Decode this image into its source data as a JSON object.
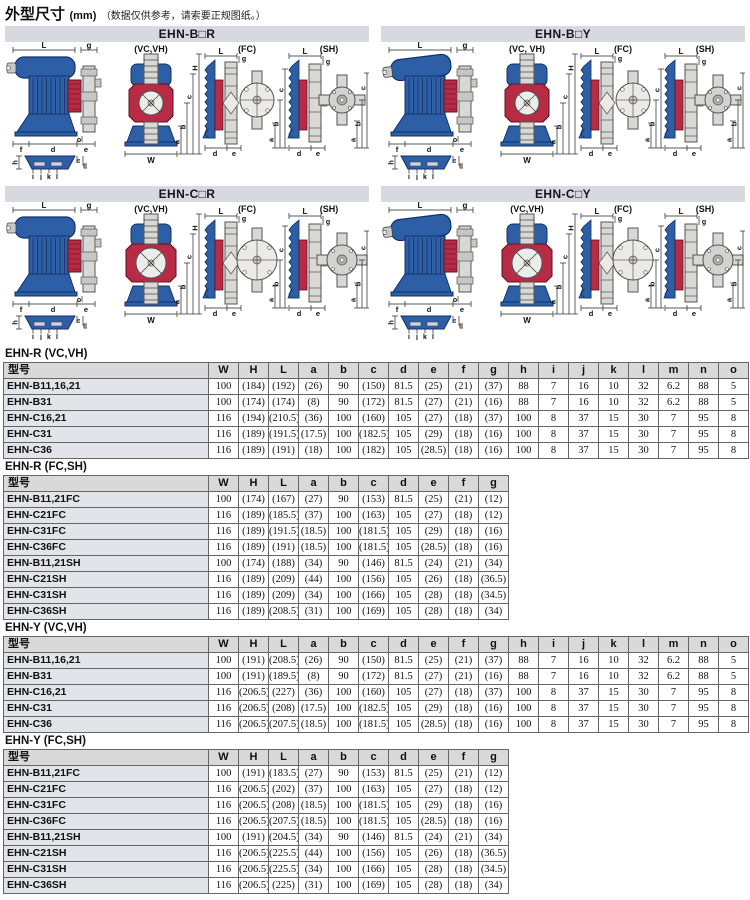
{
  "page": {
    "title": "外型尺寸",
    "title_unit": "(mm)",
    "title_note": "（数据仅供参考，请索要正规图纸。）"
  },
  "colors": {
    "pump_blue": "#2d5fa6",
    "pump_blue_dark": "#13306b",
    "pump_red": "#b72b45",
    "pump_red_dark": "#5e1020",
    "metal_gray": "#d8d8d4",
    "metal_gray_dark": "#555555",
    "panel_header_bg": "#d6d9de",
    "table_header_bg": "#d9d9d9",
    "model_col_bg": "#e3e4ea",
    "table_border": "#666666"
  },
  "panels": [
    {
      "title": "EHN-B□R",
      "views": [
        "(VC,VH)",
        "(FC)",
        "(SH)"
      ],
      "slant": false,
      "big": false
    },
    {
      "title": "EHN-B□Y",
      "views": [
        "(VC, VH)",
        "(FC)",
        "(SH)"
      ],
      "slant": true,
      "big": false
    },
    {
      "title": "EHN-C□R",
      "views": [
        "(VC,VH)",
        "(FC)",
        "(SH)"
      ],
      "slant": false,
      "big": true
    },
    {
      "title": "EHN-C□Y",
      "views": [
        "(VC,VH)",
        "(FC)",
        "(SH)"
      ],
      "slant": true,
      "big": true
    }
  ],
  "diagram_dims": {
    "side_top": [
      "L",
      "g"
    ],
    "side_bottom": [
      "f",
      "d",
      "e"
    ],
    "side_o": "o",
    "front_vertical": [
      "H",
      "c",
      "b",
      "a"
    ],
    "front_bottom": "W",
    "fcsh_vertical": [
      "c",
      "b",
      "a"
    ],
    "fcsh_bottom": [
      "d",
      "e"
    ],
    "fcsh_top": [
      "L",
      "g"
    ],
    "bottom_view": [
      "h",
      "i",
      "j",
      "k",
      "l",
      "m",
      "n"
    ]
  },
  "tables": [
    {
      "label": "EHN-R (VC,VH)",
      "full_width": true,
      "columns": [
        "型号",
        "W",
        "H",
        "L",
        "a",
        "b",
        "c",
        "d",
        "e",
        "f",
        "g",
        "h",
        "i",
        "j",
        "k",
        "l",
        "m",
        "n",
        "o"
      ],
      "rows": [
        [
          "EHN-B11,16,21",
          "100",
          "(184)",
          "(192)",
          "(26)",
          "90",
          "(150)",
          "81.5",
          "(25)",
          "(21)",
          "(37)",
          "88",
          "7",
          "16",
          "10",
          "32",
          "6.2",
          "88",
          "5"
        ],
        [
          "EHN-B31",
          "100",
          "(174)",
          "(174)",
          "(8)",
          "90",
          "(172)",
          "81.5",
          "(27)",
          "(21)",
          "(16)",
          "88",
          "7",
          "16",
          "10",
          "32",
          "6.2",
          "88",
          "5"
        ],
        [
          "EHN-C16,21",
          "116",
          "(194)",
          "(210.5)",
          "(36)",
          "100",
          "(160)",
          "105",
          "(27)",
          "(18)",
          "(37)",
          "100",
          "8",
          "37",
          "15",
          "30",
          "7",
          "95",
          "8"
        ],
        [
          "EHN-C31",
          "116",
          "(189)",
          "(191.5)",
          "(17.5)",
          "100",
          "(182.5)",
          "105",
          "(29)",
          "(18)",
          "(16)",
          "100",
          "8",
          "37",
          "15",
          "30",
          "7",
          "95",
          "8"
        ],
        [
          "EHN-C36",
          "116",
          "(189)",
          "(191)",
          "(18)",
          "100",
          "(182)",
          "105",
          "(28.5)",
          "(18)",
          "(16)",
          "100",
          "8",
          "37",
          "15",
          "30",
          "7",
          "95",
          "8"
        ]
      ]
    },
    {
      "label": "EHN-R (FC,SH)",
      "full_width": false,
      "columns": [
        "型号",
        "W",
        "H",
        "L",
        "a",
        "b",
        "c",
        "d",
        "e",
        "f",
        "g"
      ],
      "rows": [
        [
          "EHN-B11,21FC",
          "100",
          "(174)",
          "(167)",
          "(27)",
          "90",
          "(153)",
          "81.5",
          "(25)",
          "(21)",
          "(12)"
        ],
        [
          "EHN-C21FC",
          "116",
          "(189)",
          "(185.5)",
          "(37)",
          "100",
          "(163)",
          "105",
          "(27)",
          "(18)",
          "(12)"
        ],
        [
          "EHN-C31FC",
          "116",
          "(189)",
          "(191.5)",
          "(18.5)",
          "100",
          "(181.5)",
          "105",
          "(29)",
          "(18)",
          "(16)"
        ],
        [
          "EHN-C36FC",
          "116",
          "(189)",
          "(191)",
          "(18.5)",
          "100",
          "(181.5)",
          "105",
          "(28.5)",
          "(18)",
          "(16)"
        ],
        [
          "EHN-B11,21SH",
          "100",
          "(174)",
          "(188)",
          "(34)",
          "90",
          "(146)",
          "81.5",
          "(24)",
          "(21)",
          "(34)"
        ],
        [
          "EHN-C21SH",
          "116",
          "(189)",
          "(209)",
          "(44)",
          "100",
          "(156)",
          "105",
          "(26)",
          "(18)",
          "(36.5)"
        ],
        [
          "EHN-C31SH",
          "116",
          "(189)",
          "(209)",
          "(34)",
          "100",
          "(166)",
          "105",
          "(28)",
          "(18)",
          "(34.5)"
        ],
        [
          "EHN-C36SH",
          "116",
          "(189)",
          "(208.5)",
          "(31)",
          "100",
          "(169)",
          "105",
          "(28)",
          "(18)",
          "(34)"
        ]
      ]
    },
    {
      "label": "EHN-Y (VC,VH)",
      "full_width": true,
      "columns": [
        "型号",
        "W",
        "H",
        "L",
        "a",
        "b",
        "c",
        "d",
        "e",
        "f",
        "g",
        "h",
        "i",
        "j",
        "k",
        "l",
        "m",
        "n",
        "o"
      ],
      "rows": [
        [
          "EHN-B11,16,21",
          "100",
          "(191)",
          "(208.5)",
          "(26)",
          "90",
          "(150)",
          "81.5",
          "(25)",
          "(21)",
          "(37)",
          "88",
          "7",
          "16",
          "10",
          "32",
          "6.2",
          "88",
          "5"
        ],
        [
          "EHN-B31",
          "100",
          "(191)",
          "(189.5)",
          "(8)",
          "90",
          "(172)",
          "81.5",
          "(27)",
          "(21)",
          "(16)",
          "88",
          "7",
          "16",
          "10",
          "32",
          "6.2",
          "88",
          "5"
        ],
        [
          "EHN-C16,21",
          "116",
          "(206.5)",
          "(227)",
          "(36)",
          "100",
          "(160)",
          "105",
          "(27)",
          "(18)",
          "(37)",
          "100",
          "8",
          "37",
          "15",
          "30",
          "7",
          "95",
          "8"
        ],
        [
          "EHN-C31",
          "116",
          "(206.5)",
          "(208)",
          "(17.5)",
          "100",
          "(182.5)",
          "105",
          "(29)",
          "(18)",
          "(16)",
          "100",
          "8",
          "37",
          "15",
          "30",
          "7",
          "95",
          "8"
        ],
        [
          "EHN-C36",
          "116",
          "(206.5)",
          "(207.5)",
          "(18.5)",
          "100",
          "(181.5)",
          "105",
          "(28.5)",
          "(18)",
          "(16)",
          "100",
          "8",
          "37",
          "15",
          "30",
          "7",
          "95",
          "8"
        ]
      ]
    },
    {
      "label": "EHN-Y (FC,SH)",
      "full_width": false,
      "columns": [
        "型号",
        "W",
        "H",
        "L",
        "a",
        "b",
        "c",
        "d",
        "e",
        "f",
        "g"
      ],
      "rows": [
        [
          "EHN-B11,21FC",
          "100",
          "(191)",
          "(183.5)",
          "(27)",
          "90",
          "(153)",
          "81.5",
          "(25)",
          "(21)",
          "(12)"
        ],
        [
          "EHN-C21FC",
          "116",
          "(206.5)",
          "(202)",
          "(37)",
          "100",
          "(163)",
          "105",
          "(27)",
          "(18)",
          "(12)"
        ],
        [
          "EHN-C31FC",
          "116",
          "(206.5)",
          "(208)",
          "(18.5)",
          "100",
          "(181.5)",
          "105",
          "(29)",
          "(18)",
          "(16)"
        ],
        [
          "EHN-C36FC",
          "116",
          "(206.5)",
          "(207.5)",
          "(18.5)",
          "100",
          "(181.5)",
          "105",
          "(28.5)",
          "(18)",
          "(16)"
        ],
        [
          "EHN-B11,21SH",
          "100",
          "(191)",
          "(204.5)",
          "(34)",
          "90",
          "(146)",
          "81.5",
          "(24)",
          "(21)",
          "(34)"
        ],
        [
          "EHN-C21SH",
          "116",
          "(206.5)",
          "(225.5)",
          "(44)",
          "100",
          "(156)",
          "105",
          "(26)",
          "(18)",
          "(36.5)"
        ],
        [
          "EHN-C31SH",
          "116",
          "(206.5)",
          "(225.5)",
          "(34)",
          "100",
          "(166)",
          "105",
          "(28)",
          "(18)",
          "(34.5)"
        ],
        [
          "EHN-C36SH",
          "116",
          "(206.5)",
          "(225)",
          "(31)",
          "100",
          "(169)",
          "105",
          "(28)",
          "(18)",
          "(34)"
        ]
      ]
    }
  ]
}
